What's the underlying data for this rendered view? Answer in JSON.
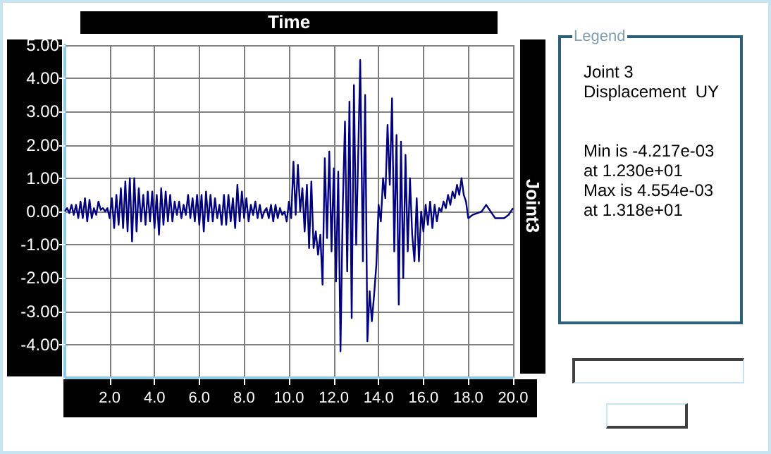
{
  "chart_data": {
    "type": "line",
    "xlabel": "Time",
    "ylabel": "Joint3",
    "legend_title": "Legend",
    "annotations": [
      "Joint 3",
      "Displacement  UY",
      "Min is -4.217e-03",
      "at 1.230e+01",
      "Max is 4.554e-03",
      "at 1.318e+01"
    ],
    "x": [
      0.0,
      0.1,
      0.2,
      0.3,
      0.4,
      0.5,
      0.6,
      0.7,
      0.8,
      0.9,
      1.0,
      1.1,
      1.2,
      1.3,
      1.4,
      1.5,
      1.6,
      1.7,
      1.8,
      1.9,
      2.0,
      2.1,
      2.2,
      2.3,
      2.4,
      2.5,
      2.6,
      2.7,
      2.8,
      2.9,
      3.0,
      3.1,
      3.2,
      3.3,
      3.4,
      3.5,
      3.6,
      3.7,
      3.8,
      3.9,
      4.0,
      4.1,
      4.2,
      4.3,
      4.4,
      4.5,
      4.6,
      4.7,
      4.8,
      4.9,
      5.0,
      5.1,
      5.2,
      5.3,
      5.4,
      5.5,
      5.6,
      5.7,
      5.8,
      5.9,
      6.0,
      6.1,
      6.2,
      6.3,
      6.4,
      6.5,
      6.6,
      6.7,
      6.8,
      6.9,
      7.0,
      7.1,
      7.2,
      7.3,
      7.4,
      7.5,
      7.6,
      7.7,
      7.8,
      7.9,
      8.0,
      8.1,
      8.2,
      8.3,
      8.4,
      8.5,
      8.6,
      8.7,
      8.8,
      8.9,
      9.0,
      9.1,
      9.2,
      9.3,
      9.4,
      9.5,
      9.6,
      9.7,
      9.8,
      9.9,
      10.0,
      10.1,
      10.2,
      10.3,
      10.4,
      10.5,
      10.6,
      10.7,
      10.8,
      10.9,
      11.0,
      11.1,
      11.2,
      11.3,
      11.4,
      11.5,
      11.6,
      11.7,
      11.8,
      11.9,
      12.0,
      12.1,
      12.2,
      12.3,
      12.4,
      12.5,
      12.6,
      12.7,
      12.8,
      12.9,
      13.0,
      13.1,
      13.18,
      13.3,
      13.4,
      13.5,
      13.6,
      13.7,
      13.8,
      13.9,
      14.0,
      14.1,
      14.2,
      14.3,
      14.4,
      14.5,
      14.6,
      14.7,
      14.8,
      14.9,
      15.0,
      15.1,
      15.2,
      15.3,
      15.4,
      15.5,
      15.6,
      15.7,
      15.8,
      15.9,
      16.0,
      16.1,
      16.2,
      16.3,
      16.4,
      16.5,
      16.6,
      16.7,
      16.8,
      16.9,
      17.0,
      17.1,
      17.2,
      17.3,
      17.4,
      17.5,
      17.6,
      17.7,
      17.8,
      17.9,
      18.0,
      18.2,
      18.4,
      18.6,
      18.8,
      19.0,
      19.2,
      19.4,
      19.6,
      19.8,
      20.0
    ],
    "series": [
      {
        "color": "#000080",
        "values": [
          0.0,
          0.1,
          -0.05,
          0.2,
          -0.1,
          0.2,
          -0.2,
          0.3,
          -0.2,
          0.4,
          -0.3,
          0.35,
          -0.2,
          0.1,
          -0.1,
          0.3,
          0.05,
          0.1,
          0.0,
          0.1,
          -0.2,
          0.4,
          -0.5,
          0.5,
          -0.4,
          0.7,
          -0.5,
          0.9,
          -0.6,
          1.0,
          -0.9,
          1.0,
          -0.6,
          0.7,
          -0.3,
          0.5,
          -0.4,
          0.6,
          -0.3,
          0.6,
          -0.5,
          0.5,
          -0.7,
          0.7,
          -0.4,
          0.6,
          -0.3,
          0.5,
          -0.3,
          0.3,
          -0.1,
          0.3,
          -0.2,
          0.2,
          -0.1,
          0.5,
          -0.2,
          0.4,
          -0.3,
          0.5,
          -0.4,
          0.5,
          -0.6,
          0.6,
          -0.3,
          0.5,
          -0.3,
          0.4,
          -0.2,
          0.2,
          -0.4,
          0.5,
          -0.4,
          0.5,
          -0.3,
          0.4,
          -0.5,
          0.8,
          -0.3,
          0.6,
          -0.2,
          0.4,
          -0.3,
          0.2,
          -0.1,
          0.3,
          -0.2,
          0.2,
          -0.2,
          0.0,
          0.1,
          -0.2,
          0.2,
          -0.3,
          0.2,
          -0.2,
          0.1,
          -0.1,
          0.0,
          -0.3,
          0.3,
          -0.2,
          1.5,
          -0.1,
          1.4,
          0.0,
          0.7,
          -0.6,
          0.8,
          -1.1,
          0.9,
          -1.1,
          -0.6,
          -1.3,
          -0.7,
          -2.2,
          1.6,
          -0.8,
          1.8,
          -1.2,
          1.3,
          -2.1,
          1.2,
          -4.2,
          0.1,
          2.7,
          -1.8,
          3.3,
          -3.2,
          3.8,
          -1.0,
          2.0,
          4.55,
          -1.5,
          3.5,
          -3.9,
          -2.4,
          -3.3,
          -2.5,
          -1.6,
          0.2,
          -0.3,
          1.0,
          0.4,
          2.6,
          0.8,
          3.4,
          -1.2,
          2.3,
          -2.8,
          2.1,
          -2.0,
          1.7,
          -1.2,
          1.0,
          -0.7,
          -1.5,
          0.4,
          -1.5,
          0.0,
          -0.6,
          0.2,
          -0.4,
          0.3,
          -0.5,
          0.2,
          -0.3,
          0.1,
          0.0,
          0.3,
          0.1,
          0.5,
          0.2,
          0.6,
          0.4,
          0.8,
          0.5,
          1.0,
          0.5,
          0.3,
          -0.2,
          -0.1,
          -0.05,
          0.0,
          0.2,
          0.0,
          -0.2,
          -0.2,
          -0.2,
          -0.1,
          0.1
        ]
      }
    ],
    "xlim": [
      0,
      20
    ],
    "xticks": [
      {
        "value": 2,
        "label": "2.0"
      },
      {
        "value": 4,
        "label": "4.0"
      },
      {
        "value": 6,
        "label": "6.0"
      },
      {
        "value": 8,
        "label": "8.0"
      },
      {
        "value": 10,
        "label": "10.0"
      },
      {
        "value": 12,
        "label": "12.0"
      },
      {
        "value": 14,
        "label": "14.0"
      },
      {
        "value": 16,
        "label": "16.0"
      },
      {
        "value": 18,
        "label": "18.0"
      },
      {
        "value": 20,
        "label": "20.0"
      }
    ],
    "ylim": [
      -5,
      5
    ],
    "yticks": [
      {
        "value": -5,
        "label": null
      },
      {
        "value": -4,
        "label": "-4.00"
      },
      {
        "value": -3,
        "label": "-3.00"
      },
      {
        "value": -2,
        "label": "-2.00"
      },
      {
        "value": -1,
        "label": "-1.00"
      },
      {
        "value": 0,
        "label": "0.00"
      },
      {
        "value": 1,
        "label": "1.00"
      },
      {
        "value": 2,
        "label": "2.00"
      },
      {
        "value": 3,
        "label": "3.00"
      },
      {
        "value": 4,
        "label": "4.00"
      },
      {
        "value": 5,
        "label": "5.00"
      }
    ],
    "grid": true,
    "marker": "none"
  }
}
